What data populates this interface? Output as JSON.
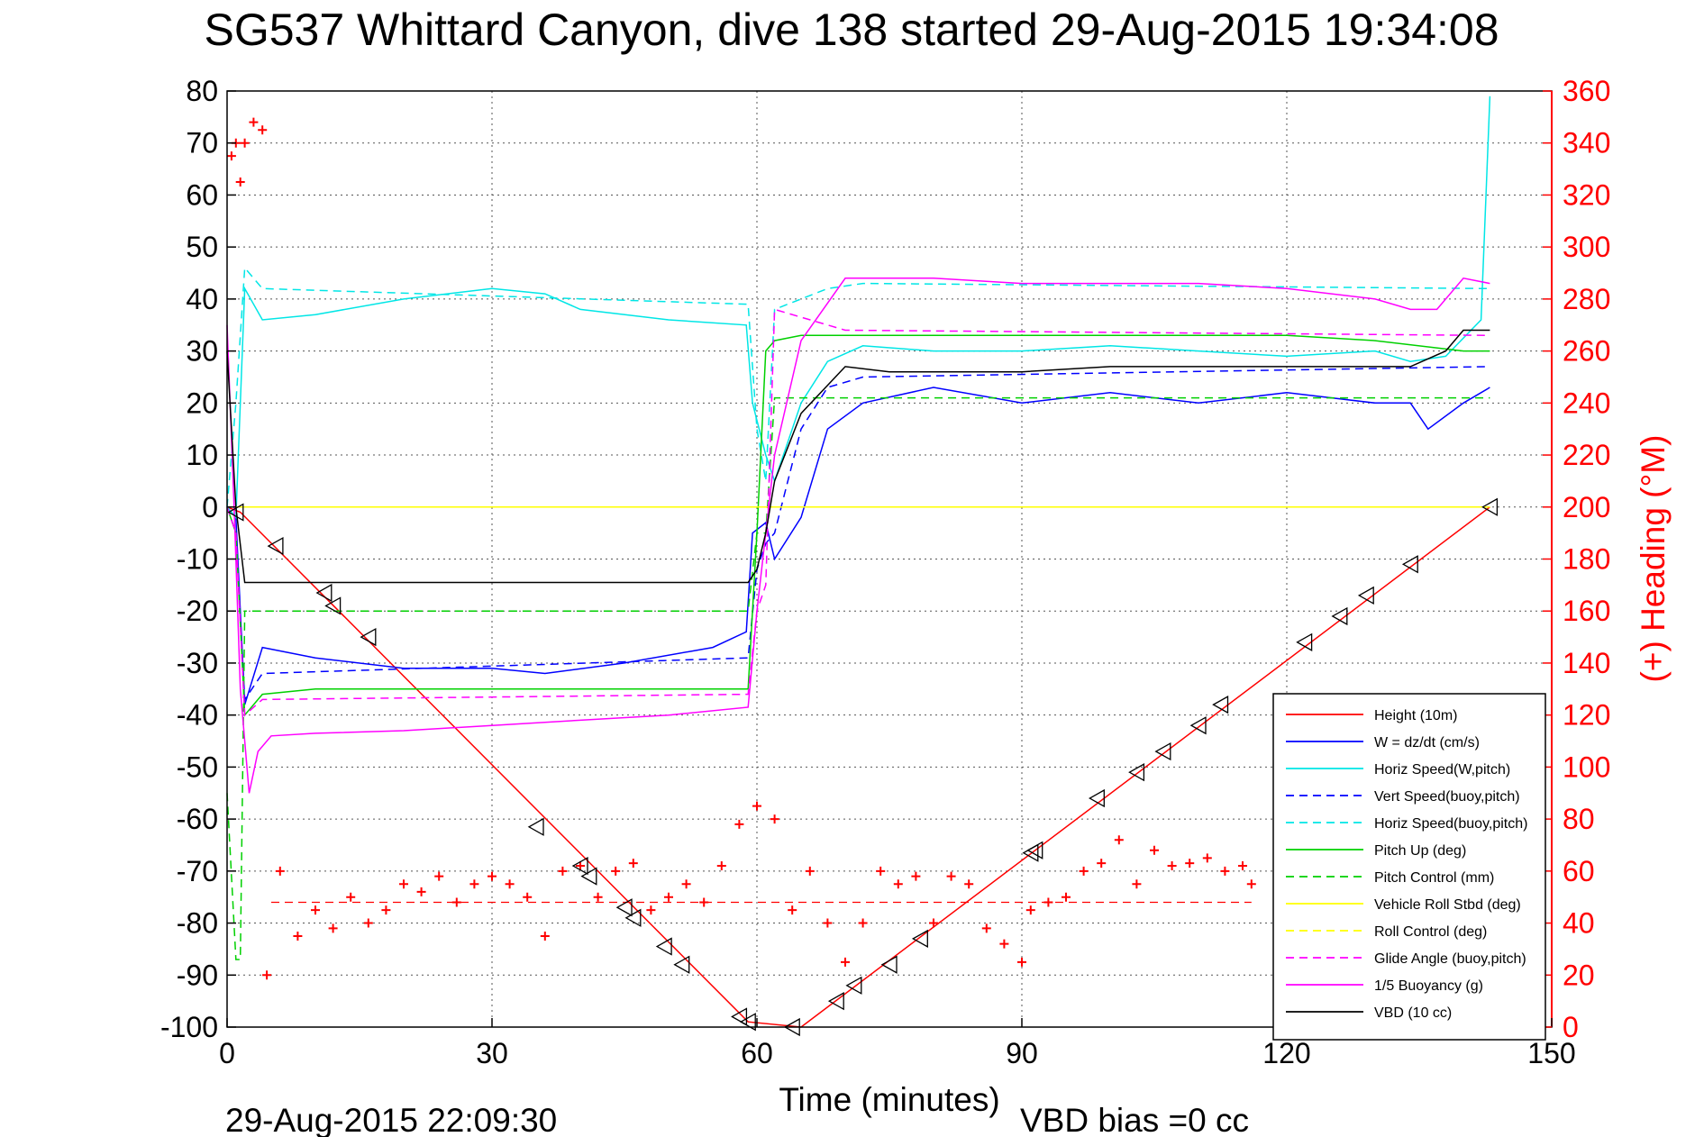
{
  "figure": {
    "title": "SG537 Whittard Canyon, dive 138 started 29-Aug-2015 19:34:08",
    "end_time": "29-Aug-2015 22:09:30",
    "vbd_bias": "VBD bias =0 cc"
  },
  "chart_data": {
    "type": "line",
    "title": "SG537 Whittard Canyon, dive 138 started 29-Aug-2015 19:34:08",
    "xlabel": "Time (minutes)",
    "ylabel": "",
    "y2label": "(+) Heading (°M)",
    "xlim": [
      0,
      150
    ],
    "ylim": [
      -100,
      80
    ],
    "y2lim": [
      0,
      360
    ],
    "xticks": [
      0,
      30,
      60,
      90,
      120,
      150
    ],
    "yticks": [
      -100,
      -90,
      -80,
      -70,
      -60,
      -50,
      -40,
      -30,
      -20,
      -10,
      0,
      10,
      20,
      30,
      40,
      50,
      60,
      70,
      80
    ],
    "y2ticks": [
      0,
      20,
      40,
      60,
      80,
      100,
      120,
      140,
      160,
      180,
      200,
      220,
      240,
      260,
      280,
      300,
      320,
      340,
      360
    ],
    "grid": true,
    "legend_position": "bottom-right",
    "series": [
      {
        "name": "Height (10m)",
        "color": "#ff0000",
        "dash": "solid",
        "x": [
          0,
          1.5,
          59,
          65,
          143
        ],
        "y": [
          0,
          -1,
          -99,
          -100,
          0
        ]
      },
      {
        "name": "W = dz/dt (cm/s)",
        "color": "#0000ff",
        "dash": "solid",
        "x": [
          0,
          1,
          2,
          4,
          10,
          20,
          30,
          36,
          45,
          55,
          58.8,
          59.5,
          61,
          62,
          65,
          68,
          72,
          80,
          90,
          100,
          110,
          120,
          130,
          134,
          136,
          140,
          142,
          143
        ],
        "y": [
          0,
          -2,
          -38,
          -27,
          -29,
          -31,
          -31,
          -32,
          -30,
          -27,
          -24,
          -5,
          -3,
          -10,
          -2,
          15,
          20,
          23,
          20,
          22,
          20,
          22,
          20,
          20,
          15,
          20,
          22,
          23
        ]
      },
      {
        "name": "Horiz Speed(W,pitch)",
        "color": "#00e6e6",
        "dash": "solid",
        "x": [
          0,
          1,
          2,
          4,
          10,
          20,
          30,
          36,
          40,
          50,
          58.8,
          59.5,
          61,
          62,
          65,
          68,
          72,
          80,
          90,
          100,
          110,
          120,
          130,
          134,
          138,
          142,
          143
        ],
        "y": [
          0,
          -2,
          42,
          36,
          37,
          40,
          42,
          41,
          38,
          36,
          35,
          20,
          10,
          5,
          20,
          28,
          31,
          30,
          30,
          31,
          30,
          29,
          30,
          28,
          29,
          36,
          79
        ]
      },
      {
        "name": "Vert Speed(buoy,pitch)",
        "color": "#0000ff",
        "dash": "dash",
        "x": [
          0,
          1,
          2,
          4,
          59,
          60,
          61,
          62,
          65,
          68,
          72,
          143
        ],
        "y": [
          0,
          -5,
          -37,
          -32,
          -29,
          -12,
          -7,
          -5,
          15,
          23,
          25,
          27
        ]
      },
      {
        "name": "Horiz Speed(buoy,pitch)",
        "color": "#00e6e6",
        "dash": "dash",
        "x": [
          0,
          1,
          2,
          4,
          59,
          60,
          61,
          62,
          68,
          72,
          143
        ],
        "y": [
          0,
          20,
          46,
          42,
          39,
          15,
          5,
          38,
          42,
          43,
          42
        ]
      },
      {
        "name": "Pitch Up (deg)",
        "color": "#00d000",
        "dash": "solid",
        "x": [
          0,
          1,
          2,
          4,
          10,
          20,
          30,
          40,
          50,
          59,
          60,
          61,
          62,
          65,
          70,
          80,
          90,
          100,
          110,
          120,
          130,
          140,
          143
        ],
        "y": [
          0,
          -5,
          -40,
          -36,
          -35,
          -35,
          -35,
          -35,
          -35,
          -35,
          -5,
          30,
          32,
          33,
          33,
          33,
          33,
          33,
          33,
          33,
          32,
          30,
          30
        ]
      },
      {
        "name": "Pitch Control (mm)",
        "color": "#00d000",
        "dash": "dash",
        "x": [
          0,
          1,
          1.5,
          2,
          59,
          60,
          61,
          62,
          143
        ],
        "y": [
          -55,
          -87,
          -87,
          -20,
          -20,
          -5,
          -5,
          21,
          21
        ]
      },
      {
        "name": "Vehicle Roll Stbd (deg)",
        "color": "#ffff00",
        "dash": "solid",
        "x": [
          0,
          143
        ],
        "y": [
          0,
          0
        ]
      },
      {
        "name": "Roll Control (deg)",
        "color": "#ffff00",
        "dash": "dash",
        "x": [
          0,
          143
        ],
        "y": [
          0,
          0
        ]
      },
      {
        "name": "Glide Angle (buoy,pitch)",
        "color": "#ff00ff",
        "dash": "dash",
        "x": [
          0,
          1,
          2,
          4,
          59,
          60,
          61,
          62,
          70,
          143
        ],
        "y": [
          0,
          -5,
          -40,
          -37,
          -36,
          -20,
          -15,
          38,
          34,
          33
        ]
      },
      {
        "name": "1/5 Buoyancy (g)",
        "color": "#ff00ff",
        "dash": "solid",
        "x": [
          0,
          0.8,
          1.5,
          2.5,
          3.5,
          5,
          10,
          20,
          30,
          40,
          50,
          59,
          60,
          62,
          65,
          70,
          80,
          90,
          100,
          110,
          120,
          130,
          134,
          137,
          140,
          143
        ],
        "y": [
          35,
          0,
          -35,
          -55,
          -47,
          -44,
          -43.5,
          -43,
          -42,
          -41,
          -40,
          -38.5,
          -20,
          10,
          32,
          44,
          44,
          43,
          43,
          43,
          42,
          40,
          38,
          38,
          44,
          43
        ]
      },
      {
        "name": "VBD (10 cc)",
        "color": "#000000",
        "dash": "solid",
        "x": [
          0,
          1,
          2,
          59,
          60,
          61,
          62,
          65,
          70,
          75,
          90,
          100,
          115,
          130,
          134,
          138,
          140,
          143
        ],
        "y": [
          30,
          0,
          -14.5,
          -14.5,
          -12,
          -5,
          5,
          18,
          27,
          26,
          26,
          27,
          27,
          27,
          27,
          30,
          34,
          34
        ]
      }
    ],
    "heading": {
      "name": "Heading",
      "color": "#ff0000",
      "marker": "+",
      "axis": "right",
      "x": [
        0.5,
        1,
        1.5,
        2,
        3,
        4,
        4.5,
        6,
        8,
        10,
        12,
        14,
        16,
        18,
        20,
        22,
        24,
        26,
        28,
        30,
        32,
        34,
        36,
        38,
        40,
        42,
        44,
        46,
        48,
        50,
        52,
        54,
        56,
        58,
        60,
        62,
        64,
        66,
        68,
        70,
        72,
        74,
        76,
        78,
        80,
        82,
        84,
        86,
        88,
        90,
        91,
        93,
        95,
        97,
        99,
        101,
        103,
        105,
        107,
        109,
        111,
        113,
        115,
        116
      ],
      "y": [
        335,
        340,
        325,
        340,
        348,
        345,
        20,
        60,
        35,
        45,
        38,
        50,
        40,
        45,
        55,
        52,
        58,
        48,
        55,
        58,
        55,
        50,
        35,
        60,
        62,
        50,
        60,
        63,
        45,
        50,
        55,
        48,
        62,
        78,
        85,
        80,
        45,
        60,
        40,
        25,
        40,
        60,
        55,
        58,
        40,
        58,
        55,
        38,
        32,
        25,
        45,
        48,
        50,
        60,
        63,
        72,
        55,
        68,
        62,
        63,
        65,
        60,
        62,
        55
      ]
    },
    "heading_reference_deg": 48,
    "chevron_markers": {
      "x": [
        1,
        5.5,
        11,
        12,
        16,
        35,
        40,
        41,
        45,
        46,
        49.5,
        51.5,
        58,
        59,
        64,
        69,
        71,
        75,
        78.5,
        91,
        91.5,
        98.5,
        103,
        106,
        110,
        112.5,
        122,
        126,
        129,
        134,
        143
      ],
      "y": [
        -1,
        -7.5,
        -16.5,
        -19,
        -25,
        -61.5,
        -69,
        -71,
        -77,
        -79,
        -84.5,
        -88,
        -98,
        -99,
        -100,
        -95,
        -92,
        -88,
        -83,
        -66.5,
        -66,
        -56,
        -51,
        -47,
        -42,
        -38,
        -26,
        -21,
        -17,
        -11,
        0
      ]
    }
  }
}
